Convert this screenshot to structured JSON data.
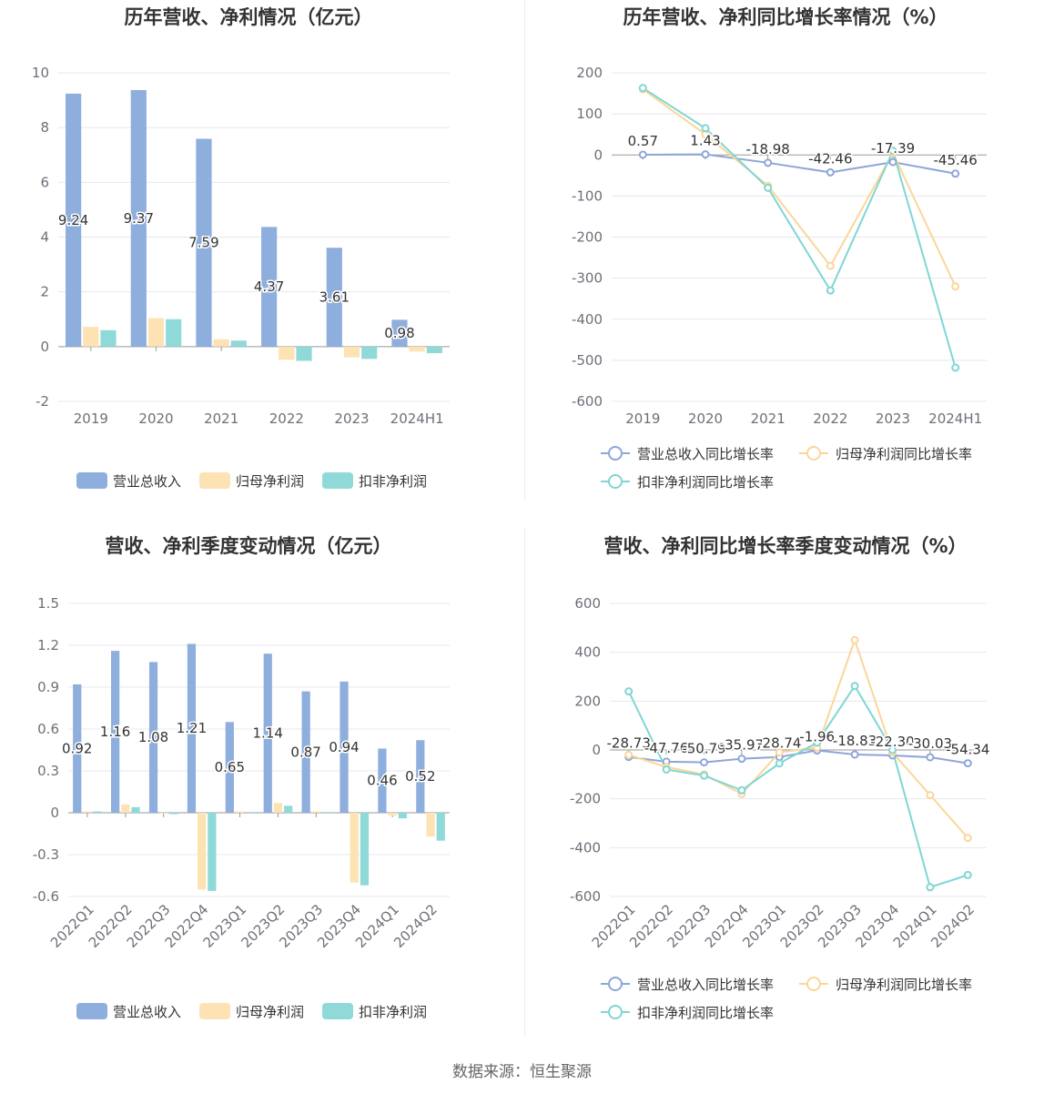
{
  "source": "数据来源：恒生聚源",
  "legend_bar": [
    "营业总收入",
    "归母净利润",
    "扣非净利润"
  ],
  "legend_line": [
    "营业总收入同比增长率",
    "归母净利润同比增长率",
    "扣非净利润同比增长率"
  ],
  "colors": {
    "revenue": "#8eaedd",
    "net_profit": "#fde2b3",
    "deducted_profit": "#8fdad9",
    "line_revenue": "#8ea6d8",
    "line_net": "#fbd699",
    "line_deducted": "#7fd6d4"
  },
  "chart_data": [
    {
      "id": "annual_bar",
      "type": "bar",
      "title": "历年营收、净利情况（亿元）",
      "categories": [
        "2019",
        "2020",
        "2021",
        "2022",
        "2023",
        "2024H1"
      ],
      "ylim": [
        -2,
        10
      ],
      "yticks": [
        -2,
        0,
        2,
        4,
        6,
        8,
        10
      ],
      "series": [
        {
          "name": "营业总收入",
          "values": [
            9.24,
            9.37,
            7.59,
            4.37,
            3.61,
            0.98
          ]
        },
        {
          "name": "归母净利润",
          "values": [
            0.72,
            1.04,
            0.27,
            -0.48,
            -0.39,
            -0.18
          ]
        },
        {
          "name": "扣非净利润",
          "values": [
            0.6,
            1.0,
            0.22,
            -0.52,
            -0.45,
            -0.24
          ]
        }
      ],
      "labels": [
        "9.24",
        "9.37",
        "7.59",
        "4.37",
        "3.61",
        "0.98"
      ]
    },
    {
      "id": "annual_growth",
      "type": "line",
      "title": "历年营收、净利同比增长率情况（%）",
      "categories": [
        "2019",
        "2020",
        "2021",
        "2022",
        "2023",
        "2024H1"
      ],
      "ylim": [
        -600,
        200
      ],
      "yticks": [
        -600,
        -500,
        -400,
        -300,
        -200,
        -100,
        0,
        100,
        200
      ],
      "series": [
        {
          "name": "营业总收入同比增长率",
          "values": [
            0.57,
            1.43,
            -18.98,
            -42.46,
            -17.39,
            -45.46
          ]
        },
        {
          "name": "归母净利润同比增长率",
          "values": [
            160,
            50,
            -75,
            -270,
            5,
            -320
          ]
        },
        {
          "name": "扣非净利润同比增长率",
          "values": [
            163,
            65,
            -80,
            -330,
            10,
            -518
          ]
        }
      ],
      "labels": [
        "0.57",
        "1.43",
        "-18.98",
        "-42.46",
        "-17.39",
        "-45.46"
      ]
    },
    {
      "id": "quarter_bar",
      "type": "bar",
      "title": "营收、净利季度变动情况（亿元）",
      "categories": [
        "2022Q1",
        "2022Q2",
        "2022Q3",
        "2022Q4",
        "2023Q1",
        "2023Q2",
        "2023Q3",
        "2023Q4",
        "2024Q1",
        "2024Q2"
      ],
      "ylim": [
        -0.6,
        1.5
      ],
      "yticks": [
        -0.6,
        -0.3,
        0,
        0.3,
        0.6,
        0.9,
        1.2,
        1.5
      ],
      "series": [
        {
          "name": "营业总收入",
          "values": [
            0.92,
            1.16,
            1.08,
            1.21,
            0.65,
            1.14,
            0.87,
            0.94,
            0.46,
            0.52
          ]
        },
        {
          "name": "归母净利润",
          "values": [
            0.01,
            0.06,
            -0.005,
            -0.55,
            0.01,
            0.07,
            0.01,
            -0.5,
            -0.02,
            -0.17
          ]
        },
        {
          "name": "扣非净利润",
          "values": [
            0.01,
            0.04,
            -0.01,
            -0.56,
            0.005,
            0.05,
            0.005,
            -0.52,
            -0.04,
            -0.2
          ]
        }
      ],
      "labels": [
        "0.92",
        "1.16",
        "1.08",
        "1.21",
        "0.65",
        "1.14",
        "0.87",
        "0.94",
        "0.46",
        "0.52"
      ]
    },
    {
      "id": "quarter_growth",
      "type": "line",
      "title": "营收、净利同比增长率季度变动情况（%）",
      "categories": [
        "2022Q1",
        "2022Q2",
        "2022Q3",
        "2022Q4",
        "2023Q1",
        "2023Q2",
        "2023Q3",
        "2023Q4",
        "2024Q1",
        "2024Q2"
      ],
      "ylim": [
        -600,
        600
      ],
      "yticks": [
        -600,
        -400,
        -200,
        0,
        200,
        400,
        600
      ],
      "series": [
        {
          "name": "营业总收入同比增长率",
          "values": [
            -28.73,
            -47.76,
            -50.79,
            -35.97,
            -28.74,
            -1.96,
            -18.83,
            -22.3,
            -30.03,
            -54.34
          ]
        },
        {
          "name": "归母净利润同比增长率",
          "values": [
            -20,
            -70,
            -100,
            -180,
            -10,
            10,
            450,
            -10,
            -185,
            -360
          ]
        },
        {
          "name": "扣非净利润同比增长率",
          "values": [
            240,
            -80,
            -105,
            -165,
            -55,
            30,
            262,
            0,
            -562,
            -512
          ]
        }
      ],
      "labels": [
        "-28.73",
        "-47.76",
        "-50.79",
        "-35.97",
        "-28.74",
        "-1.96",
        "-18.83",
        "-22.30",
        "-30.03",
        "-54.34"
      ]
    }
  ]
}
